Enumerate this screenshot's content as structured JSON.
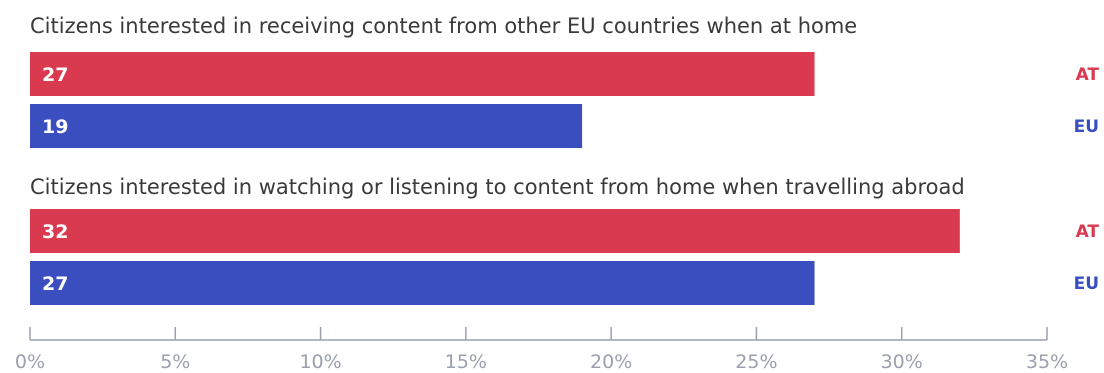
{
  "chart_data": {
    "type": "bar",
    "orientation": "horizontal",
    "groups": [
      {
        "title": "Citizens interested in receiving content from other EU countries when at home",
        "bars": [
          {
            "series": "AT",
            "value": 27
          },
          {
            "series": "EU",
            "value": 19
          }
        ]
      },
      {
        "title": "Citizens interested in watching or listening to content from home when travelling abroad",
        "bars": [
          {
            "series": "AT",
            "value": 32
          },
          {
            "series": "EU",
            "value": 27
          }
        ]
      }
    ],
    "series": [
      {
        "name": "AT",
        "color": "#d93a4f"
      },
      {
        "name": "EU",
        "color": "#3a4ebf"
      }
    ],
    "xlim": [
      0,
      35
    ],
    "xticks": [
      0,
      5,
      10,
      15,
      20,
      25,
      30,
      35
    ],
    "xtick_labels": [
      "0%",
      "5%",
      "10%",
      "15%",
      "20%",
      "25%",
      "30%",
      "35%"
    ],
    "grid": false,
    "legend": "right of each bar"
  }
}
